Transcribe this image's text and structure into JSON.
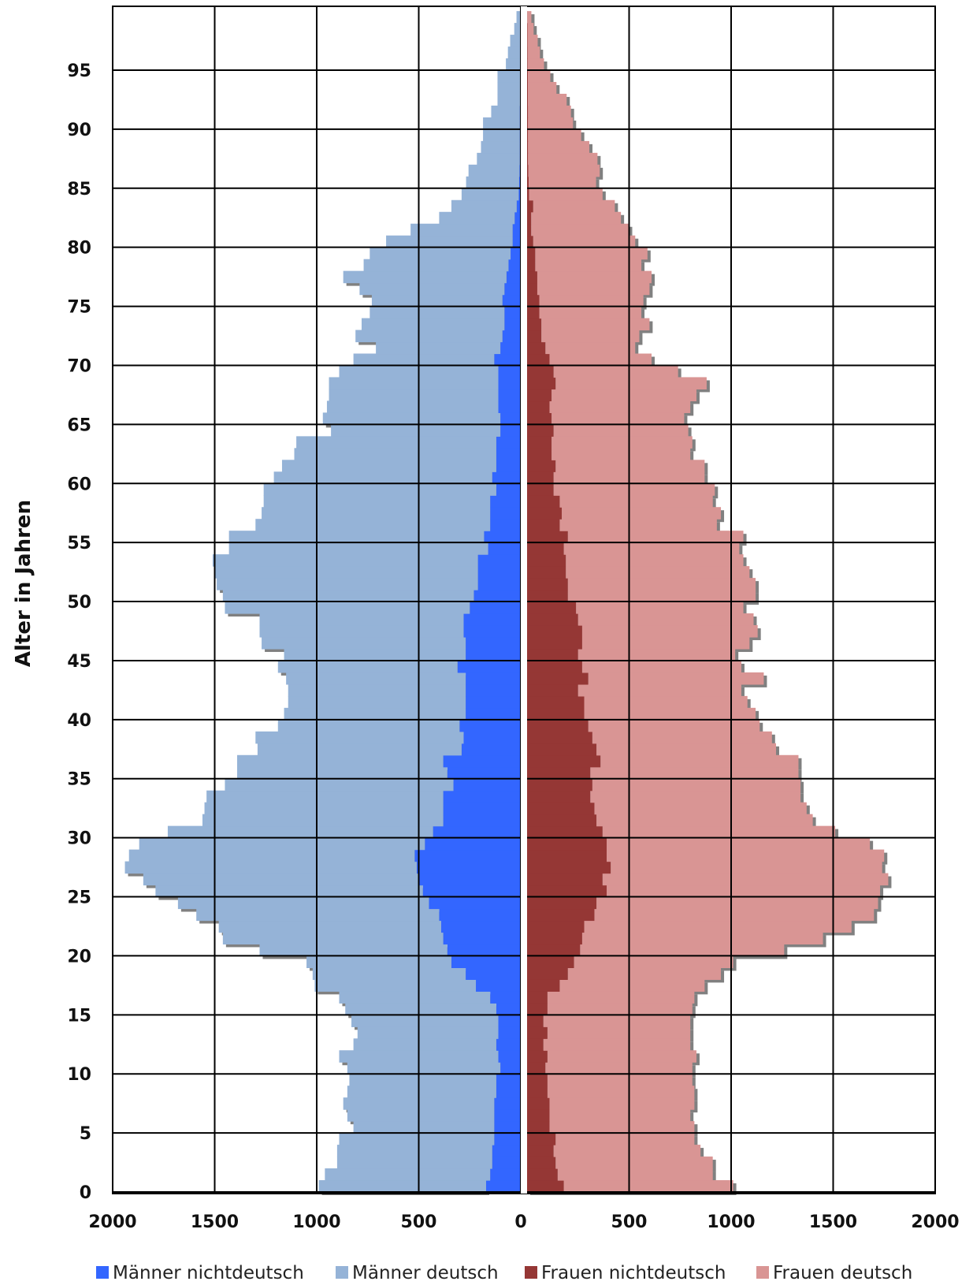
{
  "chart_data": {
    "type": "bar",
    "orientation": "horizontal",
    "title": "",
    "ylabel": "Alter in Jahren",
    "xlabel": "",
    "age_min": 0,
    "age_max": 99,
    "ages": [
      0,
      1,
      2,
      3,
      4,
      5,
      6,
      7,
      8,
      9,
      10,
      11,
      12,
      13,
      14,
      15,
      16,
      17,
      18,
      19,
      20,
      21,
      22,
      23,
      24,
      25,
      26,
      27,
      28,
      29,
      30,
      31,
      32,
      33,
      34,
      35,
      36,
      37,
      38,
      39,
      40,
      41,
      42,
      43,
      44,
      45,
      46,
      47,
      48,
      49,
      50,
      51,
      52,
      53,
      54,
      55,
      56,
      57,
      58,
      59,
      60,
      61,
      62,
      63,
      64,
      65,
      66,
      67,
      68,
      69,
      70,
      71,
      72,
      73,
      74,
      75,
      76,
      77,
      78,
      79,
      80,
      81,
      82,
      83,
      84,
      85,
      86,
      87,
      88,
      89,
      90,
      91,
      92,
      93,
      94,
      95,
      96,
      97,
      98,
      99
    ],
    "x_ticks_left": [
      "2000",
      "1500",
      "1000",
      "500",
      "0"
    ],
    "x_ticks_right": [
      "0",
      "500",
      "1000",
      "1500",
      "2000"
    ],
    "y_ticks": [
      "0",
      "5",
      "10",
      "15",
      "20",
      "25",
      "30",
      "35",
      "40",
      "45",
      "50",
      "55",
      "60",
      "65",
      "70",
      "75",
      "80",
      "85",
      "90",
      "95"
    ],
    "xlim": [
      0,
      2000
    ],
    "grid": true,
    "legend_position": "bottom",
    "colors": {
      "maenner_nichtdeutsch": "#3366ff",
      "maenner_deutsch": "#95b3d7",
      "frauen_nichtdeutsch": "#953735",
      "frauen_deutsch": "#d99594"
    },
    "series": [
      {
        "name": "Männer nichtdeutsch",
        "key": "maenner_nichtdeutsch",
        "values": [
          170,
          150,
          140,
          140,
          130,
          130,
          130,
          130,
          120,
          120,
          100,
          110,
          120,
          110,
          110,
          120,
          150,
          220,
          270,
          340,
          360,
          380,
          390,
          400,
          450,
          480,
          500,
          510,
          520,
          470,
          430,
          380,
          380,
          380,
          330,
          360,
          380,
          290,
          280,
          300,
          270,
          270,
          270,
          270,
          310,
          270,
          270,
          280,
          280,
          250,
          230,
          210,
          210,
          210,
          160,
          180,
          150,
          150,
          150,
          120,
          140,
          120,
          120,
          120,
          100,
          100,
          110,
          110,
          110,
          110,
          130,
          100,
          90,
          80,
          80,
          90,
          80,
          70,
          60,
          50,
          40,
          40,
          30,
          20,
          10,
          8,
          6,
          5,
          5,
          5,
          5,
          5,
          4,
          4,
          4,
          3,
          3,
          2,
          2,
          1
        ]
      },
      {
        "name": "Männer deutsch",
        "key": "maenner_deutsch",
        "values": [
          820,
          810,
          760,
          760,
          760,
          690,
          720,
          740,
          730,
          720,
          750,
          780,
          700,
          690,
          720,
          740,
          740,
          790,
          750,
          710,
          920,
          1080,
          1090,
          1190,
          1230,
          1310,
          1350,
          1430,
          1400,
          1400,
          1300,
          1180,
          1170,
          1160,
          1120,
          1030,
          1010,
          1000,
          1020,
          890,
          890,
          870,
          870,
          880,
          880,
          890,
          1000,
          1000,
          1000,
          1200,
          1230,
          1280,
          1290,
          1300,
          1270,
          1250,
          1150,
          1120,
          1110,
          1140,
          1070,
          1050,
          990,
          980,
          830,
          870,
          840,
          830,
          830,
          780,
          690,
          610,
          720,
          700,
          660,
          640,
          710,
          800,
          710,
          690,
          620,
          500,
          370,
          320,
          280,
          260,
          250,
          210,
          190,
          180,
          180,
          140,
          110,
          110,
          110,
          70,
          60,
          50,
          30,
          20
        ]
      },
      {
        "name": "Frauen nichtdeutsch",
        "key": "frauen_nichtdeutsch",
        "values": [
          180,
          150,
          140,
          130,
          140,
          110,
          110,
          110,
          100,
          100,
          90,
          100,
          80,
          100,
          80,
          100,
          100,
          160,
          200,
          230,
          260,
          270,
          280,
          330,
          340,
          390,
          370,
          410,
          390,
          390,
          370,
          340,
          330,
          310,
          320,
          310,
          360,
          340,
          320,
          300,
          280,
          280,
          250,
          300,
          270,
          250,
          270,
          270,
          250,
          240,
          200,
          200,
          190,
          190,
          180,
          200,
          160,
          170,
          160,
          130,
          130,
          140,
          120,
          120,
          130,
          120,
          110,
          120,
          140,
          130,
          110,
          90,
          70,
          70,
          60,
          60,
          50,
          50,
          40,
          40,
          30,
          20,
          20,
          30,
          10,
          8,
          6,
          5,
          5,
          5,
          5,
          5,
          4,
          4,
          4,
          3,
          3,
          2,
          2,
          1
        ]
      },
      {
        "name": "Frauen deutsch",
        "key": "frauen_deutsch",
        "values": [
          830,
          760,
          770,
          720,
          680,
          710,
          690,
          710,
          720,
          710,
          720,
          730,
          720,
          700,
          720,
          710,
          720,
          710,
          750,
          780,
          1000,
          1180,
          1310,
          1370,
          1380,
          1340,
          1400,
          1330,
          1360,
          1290,
          1140,
          1060,
          1040,
          1030,
          1020,
          1020,
          970,
          880,
          880,
          840,
          840,
          800,
          800,
          860,
          780,
          770,
          820,
          860,
          860,
          820,
          920,
          920,
          900,
          870,
          860,
          860,
          770,
          780,
          750,
          790,
          740,
          730,
          680,
          690,
          660,
          650,
          690,
          710,
          740,
          610,
          500,
          440,
          480,
          530,
          500,
          510,
          550,
          560,
          520,
          550,
          500,
          480,
          440,
          400,
          360,
          330,
          350,
          340,
          300,
          260,
          220,
          210,
          190,
          140,
          110,
          80,
          60,
          50,
          30,
          20
        ]
      }
    ]
  }
}
